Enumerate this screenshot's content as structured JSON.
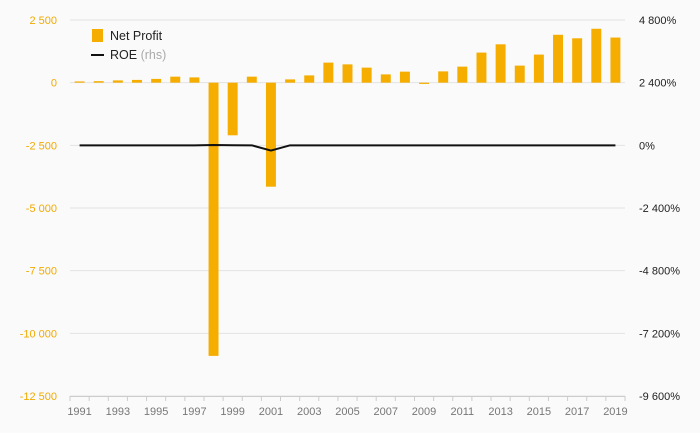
{
  "chart_data": {
    "type": "bar+line",
    "categories": [
      "1991",
      "1992",
      "1993",
      "1994",
      "1995",
      "1996",
      "1997",
      "1998",
      "1999",
      "2000",
      "2001",
      "2002",
      "2003",
      "2004",
      "2005",
      "2006",
      "2007",
      "2008",
      "2009",
      "2010",
      "2011",
      "2012",
      "2013",
      "2014",
      "2015",
      "2016",
      "2017",
      "2018",
      "2019"
    ],
    "x_tick_labels": [
      "1991",
      "1993",
      "1995",
      "1997",
      "1999",
      "2001",
      "2003",
      "2005",
      "2007",
      "2009",
      "2011",
      "2013",
      "2015",
      "2017",
      "2019"
    ],
    "series": [
      {
        "name": "Net Profit",
        "axis": "left",
        "kind": "bar",
        "color": "#f5ad00",
        "values": [
          50,
          60,
          90,
          110,
          150,
          240,
          210,
          -10900,
          -2100,
          240,
          -4150,
          130,
          290,
          800,
          730,
          600,
          330,
          440,
          -50,
          450,
          640,
          1200,
          1530,
          680,
          1120,
          1910,
          1770,
          2150,
          1800
        ]
      },
      {
        "name": "ROE",
        "name_suffix": "(rhs)",
        "axis": "right",
        "kind": "line",
        "color": "#111111",
        "values": [
          0.2,
          0.3,
          0.4,
          0.4,
          0.3,
          0.4,
          0.1,
          12,
          2,
          0,
          -200,
          0.5,
          0,
          0.4,
          0.2,
          0,
          -0.2,
          0.2,
          -0.5,
          0,
          0.1,
          0.2,
          0.3,
          0,
          0.2,
          0.3,
          0.2,
          0.2,
          0.1
        ]
      }
    ],
    "left_axis": {
      "ylim": [
        -12500,
        2500
      ],
      "ticks": [
        2500,
        0,
        -2500,
        -5000,
        -7500,
        -10000,
        -12500
      ],
      "tick_labels": [
        "2 500",
        "0",
        "-2 500",
        "-5 000",
        "-7 500",
        "-10 000",
        "-12 500"
      ],
      "color": "#f0aa00"
    },
    "right_axis": {
      "ylim": [
        -9600,
        4800
      ],
      "ticks": [
        4800,
        2400,
        0,
        -2400,
        -4800,
        -7200,
        -9600
      ],
      "tick_labels": [
        "4 800%",
        "2 400%",
        "0%",
        "-2 400%",
        "-4 800%",
        "-7 200%",
        "-9 600%"
      ],
      "color": "#222222"
    },
    "grid": true,
    "legend_position": "top-left",
    "title": "",
    "xlabel": "",
    "ylabel": ""
  }
}
